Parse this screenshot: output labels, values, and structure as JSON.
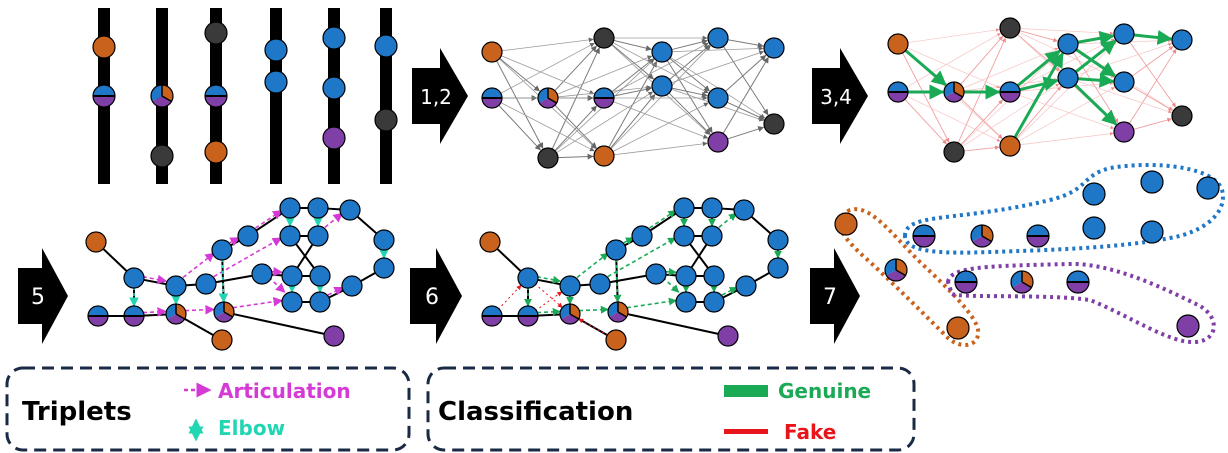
{
  "steps": {
    "s12": "1,2",
    "s34": "3,4",
    "s5": "5",
    "s6": "6",
    "s7": "7"
  },
  "legend_triplets": {
    "title": "Triplets",
    "articulation": "Articulation",
    "elbow": "Elbow"
  },
  "legend_classification": {
    "title": "Classification",
    "genuine": "Genuine",
    "fake": "Fake"
  },
  "colors": {
    "orange": "#c9621d",
    "blue": "#1f77c8",
    "purple": "#7f3fa6",
    "gray": "#3a3a3a",
    "green": "#1aaa55",
    "red": "#e8151b",
    "magenta": "#d63ad6",
    "cyan": "#22d6b4",
    "navy": "#1b2a44",
    "arrow_gray": "#7a7a7a",
    "fake_light": "#f0a0a0"
  },
  "icons": {
    "step_arrow": "chevron-arrow-icon",
    "articulation": "dashed-right-arrow-icon",
    "elbow": "dashed-updown-arrow-icon",
    "genuine": "green-bar-icon",
    "fake": "red-line-icon"
  }
}
